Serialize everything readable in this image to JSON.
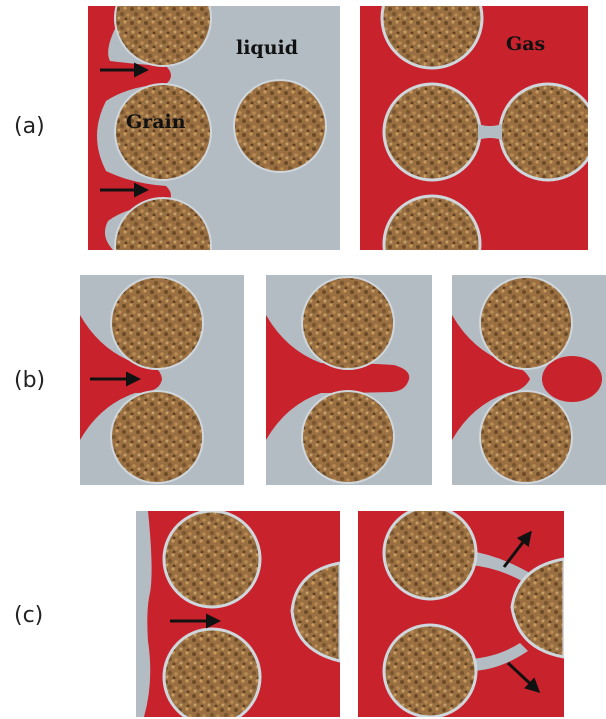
{
  "rows": [
    {
      "label": "(a)"
    },
    {
      "label": "(b)"
    },
    {
      "label": "(c)"
    }
  ],
  "panel_text": {
    "liquid": "liquid",
    "grain": "Grain",
    "gas": "Gas"
  },
  "colors": {
    "liquid": "#b3bcc3",
    "gas": "#c8222c",
    "grain": "#9a7042",
    "grain_rim": "#cfd6dc",
    "arrow": "#111111"
  }
}
